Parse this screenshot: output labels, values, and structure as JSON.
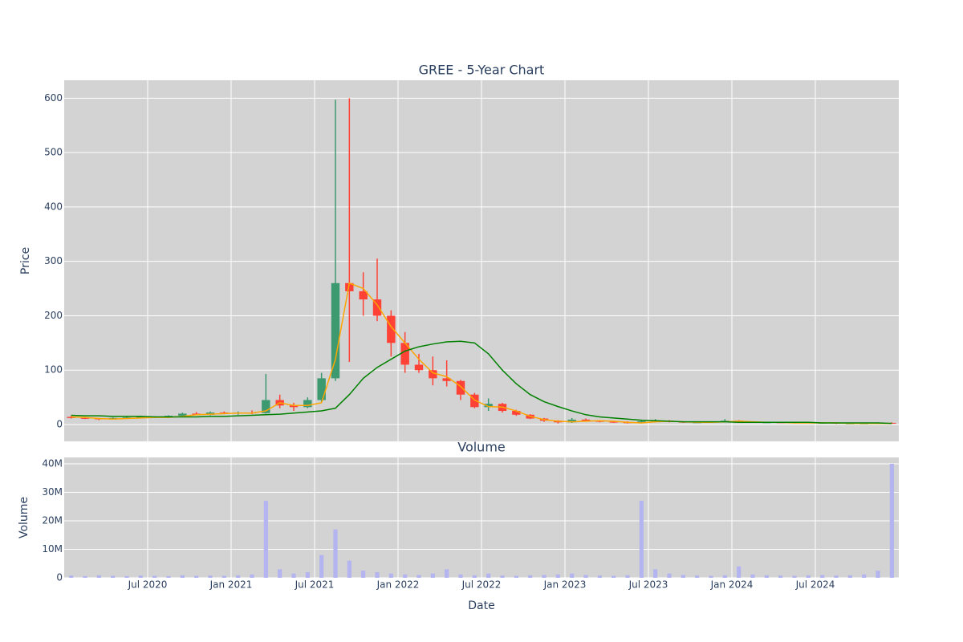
{
  "chart_data": {
    "type": "candlestick",
    "title": "GREE - 5-Year Chart",
    "ylabel": "Price",
    "xlabel": "Date",
    "grid": true,
    "background": "#d3d3d3",
    "increasing_color": "#3d9970",
    "decreasing_color": "#ff4136",
    "xlim": [
      "2020-01",
      "2025-01"
    ],
    "xticks": [
      {
        "value": "2020-07",
        "label": "Jul 2020"
      },
      {
        "value": "2021-01",
        "label": "Jan 2021"
      },
      {
        "value": "2021-07",
        "label": "Jul 2021"
      },
      {
        "value": "2022-01",
        "label": "Jan 2022"
      },
      {
        "value": "2022-07",
        "label": "Jul 2022"
      },
      {
        "value": "2023-01",
        "label": "Jan 2023"
      },
      {
        "value": "2023-07",
        "label": "Jul 2023"
      },
      {
        "value": "2024-01",
        "label": "Jan 2024"
      },
      {
        "value": "2024-07",
        "label": "Jul 2024"
      }
    ],
    "ylim": [
      -31,
      633
    ],
    "yticks": [
      0,
      100,
      200,
      300,
      400,
      500,
      600
    ],
    "x": [
      "2020-01",
      "2020-02",
      "2020-03",
      "2020-04",
      "2020-05",
      "2020-06",
      "2020-07",
      "2020-08",
      "2020-09",
      "2020-10",
      "2020-11",
      "2020-12",
      "2021-01",
      "2021-02",
      "2021-03",
      "2021-04",
      "2021-05",
      "2021-06",
      "2021-07",
      "2021-08",
      "2021-09",
      "2021-10",
      "2021-11",
      "2021-12",
      "2022-01",
      "2022-02",
      "2022-03",
      "2022-04",
      "2022-05",
      "2022-06",
      "2022-07",
      "2022-08",
      "2022-09",
      "2022-10",
      "2022-11",
      "2022-12",
      "2023-01",
      "2023-02",
      "2023-03",
      "2023-04",
      "2023-05",
      "2023-06",
      "2023-07",
      "2023-08",
      "2023-09",
      "2023-10",
      "2023-11",
      "2023-12",
      "2024-01",
      "2024-02",
      "2024-03",
      "2024-04",
      "2024-05",
      "2024-06",
      "2024-07",
      "2024-08",
      "2024-09",
      "2024-10",
      "2024-11",
      "2024-12"
    ],
    "open": [
      14,
      12,
      11,
      10,
      12,
      13,
      14,
      13,
      16,
      20,
      18,
      22,
      20,
      22,
      21,
      45,
      35,
      32,
      45,
      85,
      260,
      245,
      230,
      200,
      150,
      110,
      100,
      85,
      80,
      55,
      32,
      38,
      25,
      18,
      11,
      7,
      4,
      9,
      7,
      5,
      4,
      3,
      6,
      7,
      5,
      4,
      4,
      5,
      7,
      5,
      4,
      4,
      3,
      4,
      3,
      3,
      2,
      2,
      2,
      3
    ],
    "high": [
      16,
      13,
      12,
      13,
      14,
      16,
      15,
      17,
      22,
      23,
      24,
      24,
      24,
      26,
      93,
      55,
      40,
      50,
      95,
      597,
      600,
      280,
      305,
      210,
      170,
      130,
      125,
      118,
      82,
      58,
      48,
      40,
      27,
      19,
      12,
      8,
      12,
      11,
      8,
      6,
      6,
      9,
      10,
      8,
      6,
      5,
      6,
      10,
      8,
      6,
      5,
      5,
      5,
      5,
      4,
      4,
      3,
      3,
      4,
      4
    ],
    "low": [
      11,
      10,
      8,
      9,
      11,
      12,
      12,
      12,
      15,
      17,
      17,
      19,
      18,
      19,
      20,
      30,
      25,
      30,
      42,
      80,
      115,
      200,
      190,
      125,
      95,
      95,
      72,
      70,
      45,
      30,
      25,
      22,
      16,
      10,
      5,
      2,
      3,
      6,
      4,
      3,
      2,
      2,
      4,
      4,
      3,
      3,
      3,
      4,
      4,
      3,
      3,
      3,
      2,
      3,
      2,
      1,
      1,
      1,
      1,
      2
    ],
    "close": [
      12,
      11,
      10,
      12,
      13,
      14,
      13,
      16,
      20,
      18,
      22,
      20,
      22,
      21,
      45,
      35,
      32,
      45,
      85,
      260,
      245,
      230,
      200,
      150,
      110,
      100,
      85,
      80,
      55,
      32,
      38,
      25,
      18,
      11,
      7,
      4,
      9,
      7,
      5,
      4,
      3,
      6,
      7,
      5,
      4,
      4,
      5,
      7,
      5,
      4,
      4,
      3,
      4,
      3,
      3,
      2,
      2,
      2,
      3,
      2
    ],
    "lines": [
      {
        "color": "#ffa500",
        "values": [
          14,
          13,
          11,
          10,
          11,
          12,
          13,
          13,
          15,
          18,
          19,
          20,
          21,
          21,
          25,
          40,
          35,
          35,
          40,
          120,
          260,
          250,
          220,
          180,
          150,
          120,
          95,
          88,
          70,
          45,
          33,
          32,
          25,
          15,
          9,
          6,
          5,
          6,
          7,
          6,
          4,
          3,
          5,
          6,
          5,
          4,
          4,
          5,
          6,
          5,
          4,
          4,
          3,
          3,
          3,
          3,
          2,
          2,
          2,
          2
        ]
      },
      {
        "color": "#008000",
        "values": [
          17,
          16,
          16,
          15,
          15,
          15,
          14,
          14,
          14,
          14,
          15,
          15,
          16,
          17,
          18,
          19,
          21,
          23,
          25,
          30,
          55,
          85,
          105,
          120,
          135,
          143,
          148,
          152,
          153,
          150,
          130,
          100,
          75,
          55,
          42,
          33,
          25,
          18,
          14,
          12,
          10,
          8,
          7,
          6,
          5,
          5,
          5,
          5,
          4,
          4,
          4,
          4,
          4,
          4,
          3,
          3,
          3,
          3,
          3,
          2
        ]
      }
    ],
    "volume": {
      "title": "Volume",
      "ylabel": "Volume",
      "color": "#b4b4f0",
      "ylim": [
        0,
        42250000
      ],
      "yticks": [
        0,
        {
          "value": 10000000,
          "label": "10M"
        },
        {
          "value": 20000000,
          "label": "20M"
        },
        {
          "value": 30000000,
          "label": "30M"
        },
        {
          "value": 40000000,
          "label": "40M"
        }
      ],
      "values": [
        800000,
        600000,
        900000,
        700000,
        600000,
        800000,
        700000,
        600000,
        900000,
        700000,
        800000,
        700000,
        900000,
        1200000,
        27000000,
        3000000,
        1500000,
        2000000,
        8000000,
        17000000,
        6000000,
        2500000,
        2000000,
        1500000,
        1200000,
        1000000,
        1500000,
        3000000,
        1200000,
        900000,
        1500000,
        800000,
        700000,
        900000,
        1000000,
        1200000,
        1500000,
        1000000,
        800000,
        700000,
        900000,
        27000000,
        3000000,
        1500000,
        1000000,
        800000,
        700000,
        900000,
        4000000,
        1200000,
        900000,
        800000,
        700000,
        900000,
        1000000,
        800000,
        900000,
        1200000,
        2500000,
        40000000
      ]
    }
  }
}
